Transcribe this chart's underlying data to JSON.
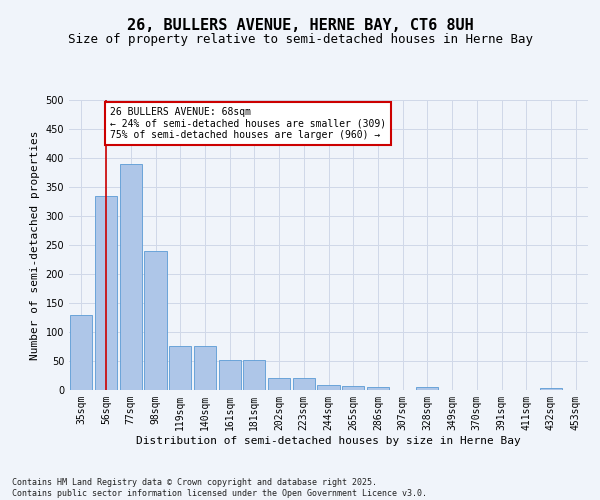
{
  "title_line1": "26, BULLERS AVENUE, HERNE BAY, CT6 8UH",
  "title_line2": "Size of property relative to semi-detached houses in Herne Bay",
  "xlabel": "Distribution of semi-detached houses by size in Herne Bay",
  "ylabel": "Number of semi-detached properties",
  "categories": [
    "35sqm",
    "56sqm",
    "77sqm",
    "98sqm",
    "119sqm",
    "140sqm",
    "161sqm",
    "181sqm",
    "202sqm",
    "223sqm",
    "244sqm",
    "265sqm",
    "286sqm",
    "307sqm",
    "328sqm",
    "349sqm",
    "370sqm",
    "391sqm",
    "411sqm",
    "432sqm",
    "453sqm"
  ],
  "values": [
    130,
    335,
    390,
    240,
    76,
    76,
    51,
    51,
    20,
    20,
    9,
    7,
    6,
    0,
    5,
    0,
    0,
    0,
    0,
    4,
    0
  ],
  "bar_color": "#aec6e8",
  "bar_edge_color": "#5b9bd5",
  "vline_x": 1,
  "vline_color": "#cc0000",
  "annotation_text": "26 BULLERS AVENUE: 68sqm\n← 24% of semi-detached houses are smaller (309)\n75% of semi-detached houses are larger (960) →",
  "annotation_box_color": "#ffffff",
  "annotation_box_edge": "#cc0000",
  "ylim": [
    0,
    500
  ],
  "yticks": [
    0,
    50,
    100,
    150,
    200,
    250,
    300,
    350,
    400,
    450,
    500
  ],
  "grid_color": "#d0d8e8",
  "footer_text": "Contains HM Land Registry data © Crown copyright and database right 2025.\nContains public sector information licensed under the Open Government Licence v3.0.",
  "fig_bg": "#f0f4fa",
  "title_fontsize": 11,
  "subtitle_fontsize": 9,
  "axis_label_fontsize": 8,
  "tick_fontsize": 7,
  "footer_fontsize": 6
}
